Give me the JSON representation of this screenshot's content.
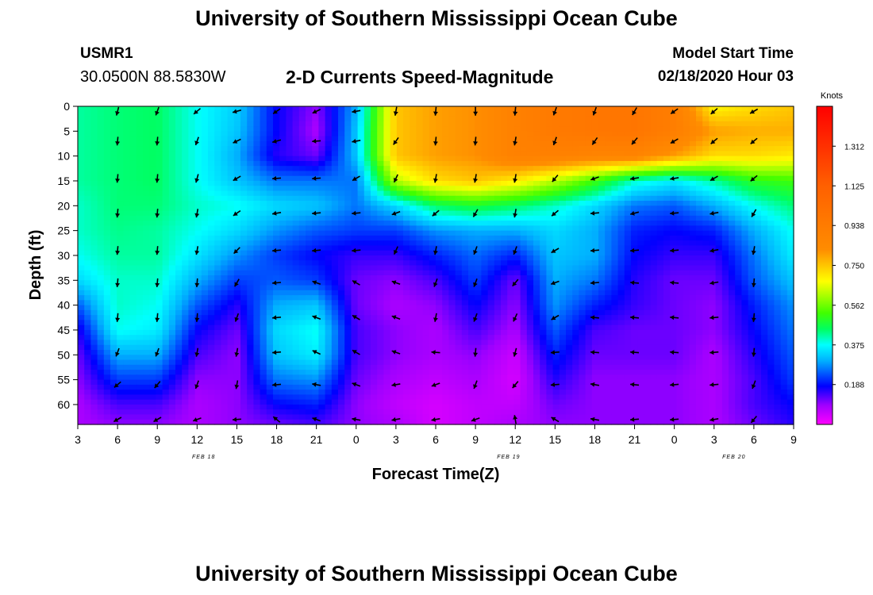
{
  "header": {
    "title": "University of Southern Mississippi Ocean Cube",
    "station_id": "USMR1",
    "station_coords": "30.0500N 88.5830W",
    "subtitle": "2-D Currents Speed-Magnitude",
    "model_start_label": "Model Start Time",
    "model_start_value": "02/18/2020 Hour 03"
  },
  "footer": {
    "title": "University of Southern Mississippi Ocean Cube"
  },
  "chart_data": {
    "type": "heatmap",
    "title": "2-D Currents Speed-Magnitude",
    "xlabel": "Forecast Time(Z)",
    "ylabel": "Depth (ft)",
    "colorbar_label": "Knots",
    "x_hours": [
      0,
      3,
      6,
      9,
      12,
      15,
      18,
      21,
      24,
      27,
      30,
      33,
      36,
      39,
      42,
      45,
      48,
      51,
      54
    ],
    "x_tick_labels": [
      "3",
      "6",
      "9",
      "12",
      "15",
      "18",
      "21",
      "0",
      "3",
      "6",
      "9",
      "12",
      "15",
      "18",
      "21",
      "0",
      "3",
      "6",
      "9"
    ],
    "date_labels": [
      {
        "label": "FEB 18",
        "hour": 9.5
      },
      {
        "label": "FEB 19",
        "hour": 32.5
      },
      {
        "label": "FEB 20",
        "hour": 49.5
      }
    ],
    "depths": [
      0,
      5,
      10,
      15,
      20,
      25,
      30,
      35,
      40,
      45,
      50,
      55,
      60,
      64
    ],
    "y_ticks": [
      0,
      5,
      10,
      15,
      20,
      25,
      30,
      35,
      40,
      45,
      50,
      55,
      60
    ],
    "y_range": [
      0,
      64
    ],
    "colorbar_ticks": [
      1.312,
      1.125,
      0.938,
      0.75,
      0.562,
      0.375,
      0.188
    ],
    "colorbar_range": [
      0,
      1.5
    ],
    "speed_knots": [
      [
        0.42,
        0.44,
        0.45,
        0.38,
        0.33,
        0.18,
        0.1,
        0.3,
        0.75,
        0.8,
        0.82,
        0.9,
        0.95,
        0.97,
        0.98,
        0.92,
        0.68,
        0.72,
        0.75
      ],
      [
        0.42,
        0.44,
        0.45,
        0.38,
        0.32,
        0.18,
        0.08,
        0.32,
        0.75,
        0.8,
        0.82,
        0.9,
        0.95,
        0.97,
        0.98,
        0.92,
        0.8,
        0.78,
        0.78
      ],
      [
        0.42,
        0.44,
        0.45,
        0.38,
        0.3,
        0.16,
        0.12,
        0.32,
        0.75,
        0.8,
        0.82,
        0.9,
        0.9,
        0.88,
        0.88,
        0.8,
        0.72,
        0.72,
        0.7
      ],
      [
        0.42,
        0.44,
        0.45,
        0.38,
        0.32,
        0.26,
        0.26,
        0.26,
        0.62,
        0.72,
        0.75,
        0.7,
        0.62,
        0.52,
        0.4,
        0.36,
        0.42,
        0.5,
        0.52
      ],
      [
        0.4,
        0.44,
        0.44,
        0.4,
        0.38,
        0.34,
        0.32,
        0.26,
        0.34,
        0.45,
        0.48,
        0.45,
        0.4,
        0.34,
        0.26,
        0.24,
        0.3,
        0.38,
        0.44
      ],
      [
        0.4,
        0.43,
        0.42,
        0.38,
        0.34,
        0.28,
        0.24,
        0.22,
        0.22,
        0.28,
        0.3,
        0.3,
        0.34,
        0.3,
        0.2,
        0.18,
        0.2,
        0.3,
        0.38
      ],
      [
        0.38,
        0.42,
        0.42,
        0.35,
        0.28,
        0.22,
        0.18,
        0.15,
        0.15,
        0.2,
        0.25,
        0.2,
        0.32,
        0.3,
        0.18,
        0.15,
        0.15,
        0.26,
        0.36
      ],
      [
        0.34,
        0.4,
        0.4,
        0.3,
        0.22,
        0.24,
        0.22,
        0.12,
        0.1,
        0.14,
        0.22,
        0.12,
        0.3,
        0.26,
        0.16,
        0.12,
        0.12,
        0.24,
        0.32
      ],
      [
        0.24,
        0.4,
        0.38,
        0.24,
        0.16,
        0.3,
        0.32,
        0.12,
        0.08,
        0.1,
        0.18,
        0.1,
        0.28,
        0.2,
        0.15,
        0.12,
        0.1,
        0.2,
        0.28
      ],
      [
        0.16,
        0.38,
        0.36,
        0.18,
        0.12,
        0.34,
        0.38,
        0.14,
        0.1,
        0.08,
        0.14,
        0.08,
        0.24,
        0.14,
        0.12,
        0.12,
        0.1,
        0.18,
        0.26
      ],
      [
        0.12,
        0.3,
        0.3,
        0.14,
        0.1,
        0.32,
        0.36,
        0.14,
        0.1,
        0.08,
        0.1,
        0.05,
        0.2,
        0.12,
        0.12,
        0.12,
        0.08,
        0.16,
        0.24
      ],
      [
        0.1,
        0.22,
        0.22,
        0.1,
        0.1,
        0.26,
        0.28,
        0.12,
        0.08,
        0.06,
        0.08,
        0.04,
        0.16,
        0.1,
        0.1,
        0.1,
        0.08,
        0.14,
        0.22
      ],
      [
        0.08,
        0.14,
        0.14,
        0.08,
        0.1,
        0.18,
        0.2,
        0.1,
        0.06,
        0.04,
        0.06,
        0.06,
        0.12,
        0.1,
        0.1,
        0.1,
        0.08,
        0.14,
        0.18
      ],
      [
        0.08,
        0.1,
        0.1,
        0.08,
        0.1,
        0.12,
        0.14,
        0.1,
        0.08,
        0.04,
        0.06,
        0.08,
        0.1,
        0.1,
        0.1,
        0.1,
        0.08,
        0.12,
        0.16
      ]
    ],
    "vector_hours": [
      3,
      6,
      9,
      12,
      15,
      18,
      21,
      24,
      27,
      30,
      33,
      36,
      39,
      42,
      45,
      48,
      51
    ],
    "vector_depths": [
      1,
      7,
      14.5,
      21.5,
      29,
      35.5,
      42.5,
      49.5,
      56,
      63
    ],
    "vector_directions_deg": [
      [
        -105,
        -110,
        -140,
        -165,
        -145,
        -155,
        -170,
        -100,
        -95,
        -90,
        -95,
        -110,
        -110,
        -120,
        -145,
        -140,
        -150
      ],
      [
        -95,
        -95,
        -110,
        -155,
        -165,
        -175,
        -170,
        -125,
        -95,
        -95,
        -100,
        -110,
        -125,
        -130,
        -150,
        -140,
        -140
      ],
      [
        -95,
        -95,
        -105,
        -150,
        -175,
        -175,
        -150,
        -115,
        -100,
        -100,
        -100,
        -130,
        -160,
        -170,
        -170,
        -150,
        -140
      ],
      [
        -95,
        -95,
        -100,
        -145,
        -170,
        -175,
        -175,
        -160,
        -140,
        -120,
        -100,
        -140,
        -175,
        -165,
        -175,
        -170,
        -120
      ],
      [
        -95,
        -95,
        -100,
        -135,
        -175,
        -175,
        -175,
        -115,
        -100,
        -110,
        -110,
        -150,
        -175,
        -175,
        -175,
        -170,
        -100
      ],
      [
        -95,
        -95,
        -95,
        -120,
        -175,
        160,
        150,
        160,
        -110,
        -110,
        -130,
        -160,
        -175,
        175,
        175,
        -170,
        -95
      ],
      [
        -95,
        -95,
        -95,
        -110,
        -175,
        160,
        150,
        160,
        -100,
        -110,
        -115,
        -150,
        175,
        175,
        175,
        -175,
        -95
      ],
      [
        -110,
        -110,
        -100,
        -100,
        -175,
        155,
        150,
        160,
        175,
        -95,
        -105,
        -175,
        175,
        175,
        175,
        -175,
        -95
      ],
      [
        -140,
        -130,
        -110,
        -100,
        -175,
        170,
        160,
        -170,
        -160,
        -110,
        -130,
        -175,
        170,
        175,
        -175,
        -175,
        -110
      ],
      [
        -150,
        -150,
        -160,
        -175,
        140,
        160,
        170,
        -170,
        -170,
        -160,
        100,
        150,
        170,
        -175,
        -175,
        -170,
        -130
      ]
    ]
  }
}
